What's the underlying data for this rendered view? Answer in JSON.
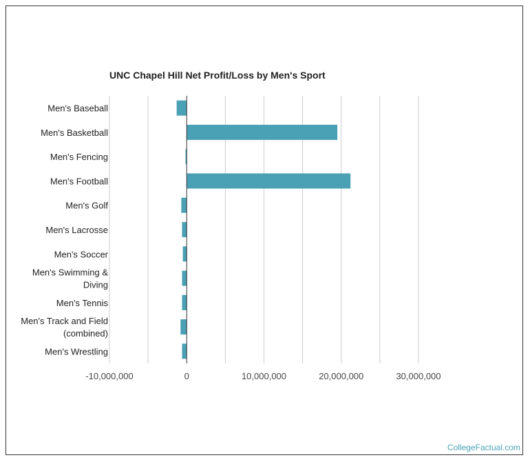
{
  "chart_data": {
    "type": "bar",
    "orientation": "horizontal",
    "title": "UNC Chapel Hill Net Profit/Loss by Men's Sport",
    "categories": [
      [
        "Men's Baseball"
      ],
      [
        "Men's Basketball"
      ],
      [
        "Men's Fencing"
      ],
      [
        "Men's Football"
      ],
      [
        "Men's Golf"
      ],
      [
        "Men's Lacrosse"
      ],
      [
        "Men's Soccer"
      ],
      [
        "Men's Swimming &",
        "Diving"
      ],
      [
        "Men's Tennis"
      ],
      [
        "Men's Track and Field",
        "(combined)"
      ],
      [
        "Men's Wrestling"
      ]
    ],
    "values": [
      -1300000,
      19500000,
      -150000,
      21200000,
      -700000,
      -600000,
      -500000,
      -600000,
      -600000,
      -800000,
      -600000
    ],
    "xlim": [
      -10000000,
      30000000
    ],
    "xticks": [
      -10000000,
      0,
      10000000,
      20000000,
      30000000
    ],
    "xtick_labels": [
      "-10,000,000",
      "0",
      "10,000,000",
      "20,000,000",
      "30,000,000"
    ],
    "minor_gridlines": [
      -5000000,
      5000000,
      15000000,
      25000000
    ],
    "grid": true,
    "bar_color": "#4aa0b4",
    "xlabel": "",
    "ylabel": ""
  },
  "credit": "CollegeFactual.com"
}
